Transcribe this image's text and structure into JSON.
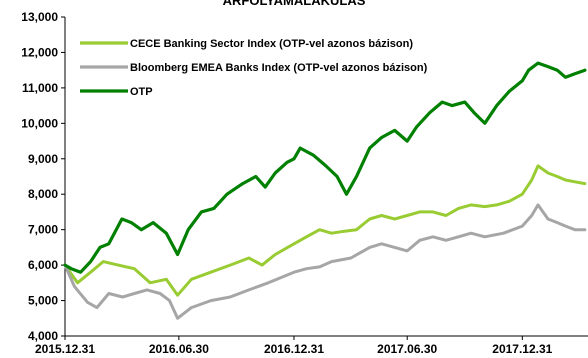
{
  "chart_data": {
    "type": "line",
    "title": "ÁRFOLYAMALAKULÁS",
    "ylim": [
      4000,
      13000
    ],
    "yticks": [
      "4,000",
      "5,000",
      "6,000",
      "7,000",
      "8,000",
      "9,000",
      "10,000",
      "11,000",
      "12,000",
      "13,000"
    ],
    "ytick_values": [
      4000,
      5000,
      6000,
      7000,
      8000,
      9000,
      10000,
      11000,
      12000,
      13000
    ],
    "xlim": [
      "2015.12.31",
      "2018.04.15"
    ],
    "xticks": [
      {
        "date": "2015.12.31",
        "label": "2015.12.31"
      },
      {
        "date": "2016.06.30",
        "label": "2016.06.30"
      },
      {
        "date": "2016.12.31",
        "label": "2016.12.31"
      },
      {
        "date": "2017.06.30",
        "label": "2017.06.30"
      },
      {
        "date": "2017.12.31",
        "label": "2017.12.31"
      }
    ],
    "legend_position": "top-left",
    "grid": false,
    "series": [
      {
        "name": "CECE Banking Sector Index (OTP-vel azonos bázison)",
        "color": "#99cc33",
        "points": [
          [
            "2015.12.31",
            6000
          ],
          [
            "2016.01.20",
            5500
          ],
          [
            "2016.02.10",
            5800
          ],
          [
            "2016.03.01",
            6100
          ],
          [
            "2016.03.25",
            6000
          ],
          [
            "2016.04.20",
            5900
          ],
          [
            "2016.05.15",
            5500
          ],
          [
            "2016.06.10",
            5600
          ],
          [
            "2016.06.28",
            5150
          ],
          [
            "2016.07.20",
            5600
          ],
          [
            "2016.08.20",
            5800
          ],
          [
            "2016.09.20",
            6000
          ],
          [
            "2016.10.20",
            6200
          ],
          [
            "2016.11.10",
            6000
          ],
          [
            "2016.12.01",
            6300
          ],
          [
            "2016.12.31",
            6600
          ],
          [
            "2017.01.20",
            6800
          ],
          [
            "2017.02.10",
            7000
          ],
          [
            "2017.03.01",
            6900
          ],
          [
            "2017.03.20",
            6950
          ],
          [
            "2017.04.10",
            7000
          ],
          [
            "2017.05.01",
            7300
          ],
          [
            "2017.05.20",
            7400
          ],
          [
            "2017.06.10",
            7300
          ],
          [
            "2017.06.30",
            7400
          ],
          [
            "2017.07.20",
            7500
          ],
          [
            "2017.08.10",
            7500
          ],
          [
            "2017.08.31",
            7400
          ],
          [
            "2017.09.20",
            7600
          ],
          [
            "2017.10.10",
            7700
          ],
          [
            "2017.11.01",
            7650
          ],
          [
            "2017.11.20",
            7700
          ],
          [
            "2017.12.10",
            7800
          ],
          [
            "2017.12.31",
            8000
          ],
          [
            "2018.01.15",
            8400
          ],
          [
            "2018.01.25",
            8800
          ],
          [
            "2018.02.10",
            8600
          ],
          [
            "2018.02.25",
            8500
          ],
          [
            "2018.03.10",
            8400
          ],
          [
            "2018.03.25",
            8350
          ],
          [
            "2018.04.10",
            8300
          ]
        ]
      },
      {
        "name": "Bloomberg EMEA Banks Index (OTP-vel azonos bázison)",
        "color": "#a6a6a6",
        "points": [
          [
            "2015.12.31",
            6000
          ],
          [
            "2016.01.15",
            5400
          ],
          [
            "2016.02.05",
            4950
          ],
          [
            "2016.02.20",
            4800
          ],
          [
            "2016.03.10",
            5200
          ],
          [
            "2016.04.01",
            5100
          ],
          [
            "2016.04.20",
            5200
          ],
          [
            "2016.05.10",
            5300
          ],
          [
            "2016.05.31",
            5200
          ],
          [
            "2016.06.15",
            5000
          ],
          [
            "2016.06.28",
            4500
          ],
          [
            "2016.07.20",
            4800
          ],
          [
            "2016.08.20",
            5000
          ],
          [
            "2016.09.20",
            5100
          ],
          [
            "2016.10.20",
            5300
          ],
          [
            "2016.11.20",
            5500
          ],
          [
            "2016.12.31",
            5800
          ],
          [
            "2017.01.20",
            5900
          ],
          [
            "2017.02.10",
            5950
          ],
          [
            "2017.03.01",
            6100
          ],
          [
            "2017.04.01",
            6200
          ],
          [
            "2017.05.01",
            6500
          ],
          [
            "2017.05.20",
            6600
          ],
          [
            "2017.06.10",
            6500
          ],
          [
            "2017.06.30",
            6400
          ],
          [
            "2017.07.20",
            6700
          ],
          [
            "2017.08.10",
            6800
          ],
          [
            "2017.08.31",
            6700
          ],
          [
            "2017.09.20",
            6800
          ],
          [
            "2017.10.10",
            6900
          ],
          [
            "2017.11.01",
            6800
          ],
          [
            "2017.12.01",
            6900
          ],
          [
            "2017.12.31",
            7100
          ],
          [
            "2018.01.15",
            7400
          ],
          [
            "2018.01.25",
            7700
          ],
          [
            "2018.02.10",
            7300
          ],
          [
            "2018.02.25",
            7200
          ],
          [
            "2018.03.10",
            7100
          ],
          [
            "2018.03.25",
            7000
          ],
          [
            "2018.04.10",
            7000
          ]
        ]
      },
      {
        "name": "OTP",
        "color": "#008000",
        "points": [
          [
            "2015.12.31",
            6000
          ],
          [
            "2016.01.10",
            5900
          ],
          [
            "2016.01.25",
            5800
          ],
          [
            "2016.02.10",
            6100
          ],
          [
            "2016.02.25",
            6500
          ],
          [
            "2016.03.10",
            6600
          ],
          [
            "2016.03.31",
            7300
          ],
          [
            "2016.04.15",
            7200
          ],
          [
            "2016.05.01",
            7000
          ],
          [
            "2016.05.20",
            7200
          ],
          [
            "2016.06.10",
            6900
          ],
          [
            "2016.06.28",
            6300
          ],
          [
            "2016.07.15",
            7000
          ],
          [
            "2016.08.05",
            7500
          ],
          [
            "2016.08.25",
            7600
          ],
          [
            "2016.09.15",
            8000
          ],
          [
            "2016.10.10",
            8300
          ],
          [
            "2016.10.31",
            8500
          ],
          [
            "2016.11.15",
            8200
          ],
          [
            "2016.12.01",
            8600
          ],
          [
            "2016.12.20",
            8900
          ],
          [
            "2016.12.31",
            9000
          ],
          [
            "2017.01.10",
            9300
          ],
          [
            "2017.01.31",
            9100
          ],
          [
            "2017.02.20",
            8800
          ],
          [
            "2017.03.10",
            8500
          ],
          [
            "2017.03.25",
            8000
          ],
          [
            "2017.04.10",
            8500
          ],
          [
            "2017.05.01",
            9300
          ],
          [
            "2017.05.20",
            9600
          ],
          [
            "2017.06.10",
            9800
          ],
          [
            "2017.06.30",
            9500
          ],
          [
            "2017.07.15",
            9900
          ],
          [
            "2017.08.05",
            10300
          ],
          [
            "2017.08.25",
            10600
          ],
          [
            "2017.09.10",
            10500
          ],
          [
            "2017.09.30",
            10600
          ],
          [
            "2017.10.15",
            10300
          ],
          [
            "2017.11.01",
            10000
          ],
          [
            "2017.11.20",
            10500
          ],
          [
            "2017.12.10",
            10900
          ],
          [
            "2017.12.31",
            11200
          ],
          [
            "2018.01.10",
            11500
          ],
          [
            "2018.01.25",
            11700
          ],
          [
            "2018.02.10",
            11600
          ],
          [
            "2018.02.25",
            11500
          ],
          [
            "2018.03.10",
            11300
          ],
          [
            "2018.03.25",
            11400
          ],
          [
            "2018.04.10",
            11500
          ]
        ]
      }
    ]
  }
}
